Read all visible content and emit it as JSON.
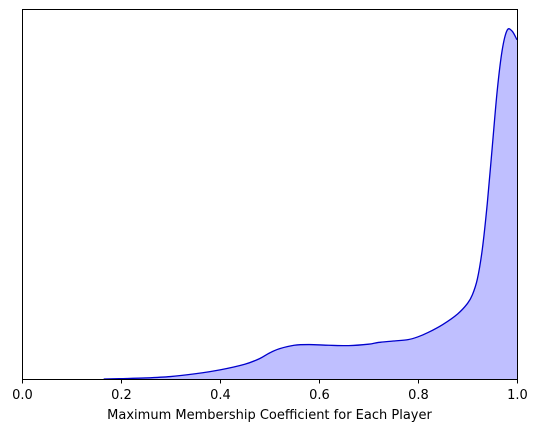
{
  "chart_data": {
    "type": "area",
    "title": "",
    "xlabel": "Maximum Membership Coefficient for Each Player",
    "ylabel": "",
    "xlim": [
      0.0,
      1.0
    ],
    "ylim": [
      0,
      1.0
    ],
    "x_ticks": [
      "0.0",
      "0.2",
      "0.4",
      "0.6",
      "0.8",
      "1.0"
    ],
    "y_ticks_shown": false,
    "grid": false,
    "series": [
      {
        "fill_color": "#bfbfff",
        "line_color": "#0000cc",
        "x": [
          0.165,
          0.2,
          0.25,
          0.3,
          0.35,
          0.4,
          0.45,
          0.48,
          0.5,
          0.52,
          0.55,
          0.58,
          0.62,
          0.66,
          0.7,
          0.72,
          0.75,
          0.78,
          0.8,
          0.82,
          0.85,
          0.88,
          0.9,
          0.91,
          0.92,
          0.93,
          0.94,
          0.95,
          0.96,
          0.97,
          0.98,
          0.99,
          1.0
        ],
        "y": [
          0.0,
          0.001,
          0.003,
          0.007,
          0.015,
          0.026,
          0.042,
          0.058,
          0.074,
          0.086,
          0.096,
          0.098,
          0.096,
          0.095,
          0.099,
          0.104,
          0.108,
          0.112,
          0.12,
          0.132,
          0.155,
          0.185,
          0.215,
          0.24,
          0.285,
          0.37,
          0.5,
          0.66,
          0.82,
          0.935,
          0.992,
          0.99,
          0.965
        ]
      }
    ]
  }
}
